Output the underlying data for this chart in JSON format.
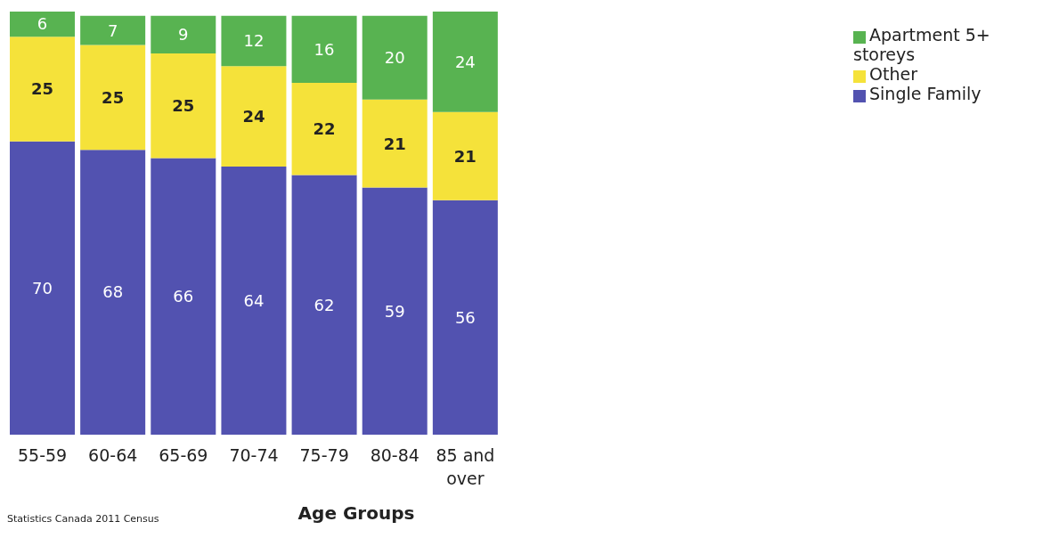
{
  "chart_data": {
    "type": "bar",
    "stacked": true,
    "xlabel": "Age Groups",
    "categories": [
      "55-59",
      "60-64",
      "65-69",
      "70-74",
      "75-79",
      "80-84",
      "85 and over"
    ],
    "series": [
      {
        "name": "Single Family",
        "color": "#5252b0",
        "values": [
          70,
          68,
          66,
          64,
          62,
          59,
          56
        ]
      },
      {
        "name": "Other",
        "color": "#f5e23a",
        "values": [
          25,
          25,
          25,
          24,
          22,
          21,
          21
        ]
      },
      {
        "name": "Apartment 5+ storeys",
        "color": "#58b351",
        "values": [
          6,
          7,
          9,
          12,
          16,
          20,
          24
        ]
      }
    ],
    "data_labels": true,
    "legend": "right",
    "annotations": [
      "Statistics Canada 2011 Census"
    ]
  }
}
